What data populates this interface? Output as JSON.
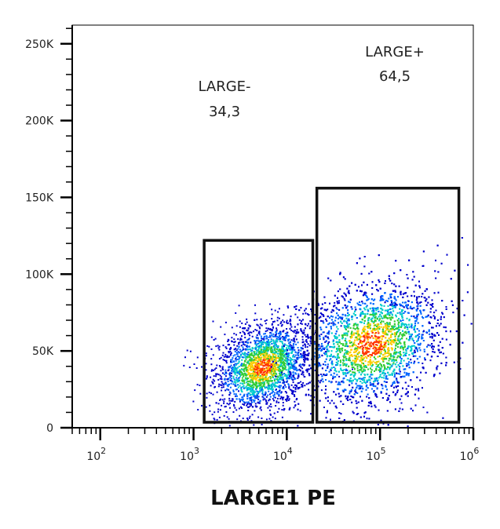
{
  "chart_data": {
    "type": "scatter",
    "title": "",
    "xlabel": "LARGE1 PE",
    "ylabel": "",
    "x_scale": "log",
    "xlim": [
      50,
      1000000
    ],
    "ylim": [
      0,
      262144
    ],
    "x_ticks": [
      {
        "value": 100,
        "base": "10",
        "exp": "2"
      },
      {
        "value": 1000,
        "base": "10",
        "exp": "3"
      },
      {
        "value": 10000,
        "base": "10",
        "exp": "4"
      },
      {
        "value": 100000,
        "base": "10",
        "exp": "5"
      },
      {
        "value": 1000000,
        "base": "10",
        "exp": "6"
      }
    ],
    "y_ticks": [
      {
        "value": 0,
        "label": "0"
      },
      {
        "value": 50000,
        "label": "50K"
      },
      {
        "value": 100000,
        "label": "100K"
      },
      {
        "value": 150000,
        "label": "150K"
      },
      {
        "value": 200000,
        "label": "200K"
      },
      {
        "value": 250000,
        "label": "250K"
      }
    ],
    "populations": [
      {
        "x_center": 5500,
        "y_center": 40000,
        "count": 2400
      },
      {
        "x_center": 80000,
        "y_center": 55000,
        "count": 5200
      }
    ],
    "gates": [
      {
        "name": "LARGE-",
        "value": "34,3",
        "x_min": 1300,
        "x_max": 19000,
        "y_min": 0,
        "y_max": 122000
      },
      {
        "name": "LARGE+",
        "value": "64,5",
        "x_min": 21000,
        "x_max": 700000,
        "y_min": 0,
        "y_max": 156000
      }
    ],
    "density_colors": [
      "#0000cc",
      "#0066ff",
      "#00cccc",
      "#33cc33",
      "#ffcc00",
      "#ff3300"
    ]
  }
}
